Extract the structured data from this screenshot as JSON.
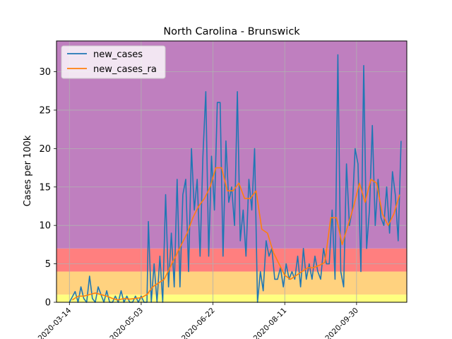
{
  "chart_data": {
    "type": "line",
    "title": "North Carolina - Brunswick",
    "xlabel": "",
    "ylabel": "Cases per 100k",
    "x_start": "2020-03-05",
    "x_end": "2020-11-04",
    "ylim": [
      0,
      34
    ],
    "yticks": [
      0,
      5,
      10,
      15,
      20,
      25,
      30
    ],
    "xticks": [
      "2020-03-14",
      "2020-05-03",
      "2020-06-22",
      "2020-08-11",
      "2020-09-30",
      "2020-11-19"
    ],
    "xtick_labels": [
      "2020-03-14",
      "2020-05-03",
      "2020-06-22",
      "2020-08-11",
      "2020-09-30",
      ""
    ],
    "grid": true,
    "legend_position": "top-left",
    "bands": [
      {
        "from": 0,
        "to": 1,
        "color": "#ffff7f"
      },
      {
        "from": 1,
        "to": 4,
        "color": "#ffd27f"
      },
      {
        "from": 4,
        "to": 7,
        "color": "#ff7f7f"
      },
      {
        "from": 7,
        "to": 34,
        "color": "#bf7fbf"
      }
    ],
    "series": [
      {
        "name": "new_cases",
        "color": "#1f77b4",
        "x": [
          "2020-03-14",
          "2020-03-18",
          "2020-03-20",
          "2020-03-22",
          "2020-03-24",
          "2020-03-26",
          "2020-03-28",
          "2020-03-30",
          "2020-04-01",
          "2020-04-03",
          "2020-04-05",
          "2020-04-07",
          "2020-04-09",
          "2020-04-11",
          "2020-04-13",
          "2020-04-15",
          "2020-04-17",
          "2020-04-19",
          "2020-04-21",
          "2020-04-23",
          "2020-04-25",
          "2020-04-27",
          "2020-04-29",
          "2020-05-01",
          "2020-05-03",
          "2020-05-05",
          "2020-05-07",
          "2020-05-08",
          "2020-05-10",
          "2020-05-12",
          "2020-05-14",
          "2020-05-16",
          "2020-05-18",
          "2020-05-20",
          "2020-05-22",
          "2020-05-24",
          "2020-05-26",
          "2020-05-28",
          "2020-05-30",
          "2020-06-01",
          "2020-06-03",
          "2020-06-05",
          "2020-06-07",
          "2020-06-09",
          "2020-06-11",
          "2020-06-13",
          "2020-06-15",
          "2020-06-17",
          "2020-06-19",
          "2020-06-21",
          "2020-06-23",
          "2020-06-25",
          "2020-06-27",
          "2020-06-29",
          "2020-07-01",
          "2020-07-03",
          "2020-07-05",
          "2020-07-07",
          "2020-07-09",
          "2020-07-11",
          "2020-07-13",
          "2020-07-15",
          "2020-07-17",
          "2020-07-19",
          "2020-07-21",
          "2020-07-23",
          "2020-07-25",
          "2020-07-27",
          "2020-07-29",
          "2020-07-31",
          "2020-08-02",
          "2020-08-04",
          "2020-08-06",
          "2020-08-08",
          "2020-08-10",
          "2020-08-12",
          "2020-08-14",
          "2020-08-16",
          "2020-08-18",
          "2020-08-20",
          "2020-08-22",
          "2020-08-24",
          "2020-08-26",
          "2020-08-28",
          "2020-08-30",
          "2020-09-01",
          "2020-09-03",
          "2020-09-05",
          "2020-09-07",
          "2020-09-09",
          "2020-09-11",
          "2020-09-13",
          "2020-09-15",
          "2020-09-17",
          "2020-09-19",
          "2020-09-21",
          "2020-09-23",
          "2020-09-25",
          "2020-09-27",
          "2020-09-29",
          "2020-10-01",
          "2020-10-03",
          "2020-10-05",
          "2020-10-07",
          "2020-10-09",
          "2020-10-11",
          "2020-10-13",
          "2020-10-15",
          "2020-10-17",
          "2020-10-19",
          "2020-10-21",
          "2020-10-23",
          "2020-10-25",
          "2020-10-27",
          "2020-10-29",
          "2020-10-31"
        ],
        "values": [
          0,
          1.4,
          0,
          2,
          0.5,
          0,
          3.4,
          0.5,
          0,
          2,
          1,
          0,
          1.5,
          0,
          0,
          0.8,
          0,
          1.5,
          0,
          0.8,
          0,
          0,
          0.8,
          0,
          0.8,
          0,
          0,
          10.5,
          0,
          5,
          0,
          6,
          0,
          14,
          2,
          9,
          2,
          16,
          2,
          14,
          16,
          4,
          20,
          12,
          16,
          6,
          19,
          27.4,
          6,
          19,
          12,
          26,
          26,
          6,
          21,
          13,
          15,
          10,
          27.4,
          8,
          12,
          6,
          16,
          12,
          20,
          0,
          4,
          1.5,
          8,
          6,
          7,
          3,
          3,
          4.5,
          2,
          5,
          3,
          4,
          3,
          6,
          2,
          7,
          3,
          5,
          3,
          6,
          4,
          3,
          7,
          5,
          5,
          12,
          3,
          32.2,
          4,
          2,
          18,
          10,
          12,
          20,
          18,
          4,
          30.8,
          7,
          12,
          23,
          10,
          16,
          11,
          10,
          15,
          9,
          17,
          14,
          8,
          21
        ],
        "raw_note": ""
      },
      {
        "name": "new_cases_ra",
        "color": "#ff7f0e",
        "x": [
          "2020-03-16",
          "2020-03-20",
          "2020-03-24",
          "2020-03-28",
          "2020-04-01",
          "2020-04-05",
          "2020-04-09",
          "2020-04-13",
          "2020-04-17",
          "2020-04-21",
          "2020-04-25",
          "2020-04-29",
          "2020-05-03",
          "2020-05-07",
          "2020-05-11",
          "2020-05-15",
          "2020-05-19",
          "2020-05-23",
          "2020-05-27",
          "2020-05-31",
          "2020-06-04",
          "2020-06-08",
          "2020-06-12",
          "2020-06-16",
          "2020-06-20",
          "2020-06-24",
          "2020-06-28",
          "2020-07-02",
          "2020-07-06",
          "2020-07-10",
          "2020-07-14",
          "2020-07-18",
          "2020-07-22",
          "2020-07-26",
          "2020-07-30",
          "2020-08-03",
          "2020-08-07",
          "2020-08-11",
          "2020-08-15",
          "2020-08-19",
          "2020-08-23",
          "2020-08-27",
          "2020-08-31",
          "2020-09-04",
          "2020-09-08",
          "2020-09-12",
          "2020-09-16",
          "2020-09-20",
          "2020-09-24",
          "2020-09-28",
          "2020-10-02",
          "2020-10-06",
          "2020-10-10",
          "2020-10-14",
          "2020-10-18",
          "2020-10-22",
          "2020-10-26",
          "2020-10-30"
        ],
        "values": [
          0.3,
          0.8,
          0.8,
          1.0,
          1.2,
          1.0,
          0.8,
          0.5,
          0.3,
          0.5,
          0.4,
          0.5,
          0.6,
          1.0,
          2.0,
          2.5,
          3.0,
          4.5,
          6.0,
          7.5,
          9.0,
          11.0,
          12.5,
          13.5,
          15.0,
          17.5,
          17.5,
          14.5,
          14.5,
          15.5,
          13.5,
          13.5,
          14.5,
          9.5,
          9.0,
          6.5,
          5.0,
          3.5,
          3.0,
          3.5,
          4.0,
          4.5,
          4.5,
          4.8,
          5.2,
          11.0,
          11.0,
          7.5,
          10.0,
          12.5,
          15.5,
          13.0,
          16.0,
          15.5,
          11.5,
          10.0,
          11.5,
          14.0
        ]
      }
    ]
  }
}
